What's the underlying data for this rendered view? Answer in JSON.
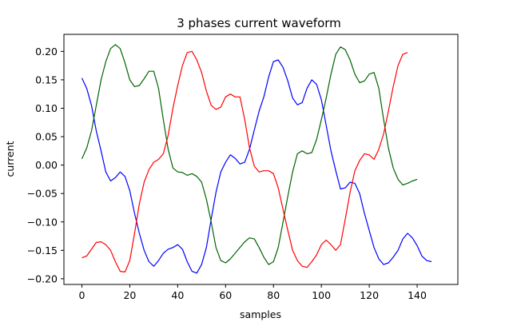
{
  "chart_data": {
    "type": "line",
    "title": "3 phases current waveform",
    "xlabel": "samples",
    "ylabel": "current",
    "xlim": [
      -7.5,
      157
    ],
    "ylim": [
      -0.21,
      0.23
    ],
    "xticks": [
      0,
      20,
      40,
      60,
      80,
      100,
      120,
      140
    ],
    "yticks": [
      -0.2,
      -0.15,
      -0.1,
      -0.05,
      0.0,
      0.05,
      0.1,
      0.15,
      0.2
    ],
    "ytick_labels": [
      "−0.20",
      "−0.15",
      "−0.10",
      "−0.05",
      "0.00",
      "0.05",
      "0.10",
      "0.15",
      "0.20"
    ],
    "legend": "none",
    "grid": false,
    "series": [
      {
        "color": "#0000ff",
        "points": [
          [
            0,
            0.153
          ],
          [
            2,
            0.135
          ],
          [
            4,
            0.105
          ],
          [
            6,
            0.06
          ],
          [
            8,
            0.025
          ],
          [
            10,
            -0.012
          ],
          [
            12,
            -0.028
          ],
          [
            14,
            -0.022
          ],
          [
            16,
            -0.012
          ],
          [
            18,
            -0.02
          ],
          [
            20,
            -0.045
          ],
          [
            22,
            -0.085
          ],
          [
            24,
            -0.12
          ],
          [
            26,
            -0.15
          ],
          [
            28,
            -0.17
          ],
          [
            30,
            -0.178
          ],
          [
            32,
            -0.168
          ],
          [
            34,
            -0.155
          ],
          [
            36,
            -0.148
          ],
          [
            38,
            -0.145
          ],
          [
            40,
            -0.14
          ],
          [
            42,
            -0.148
          ],
          [
            44,
            -0.17
          ],
          [
            46,
            -0.187
          ],
          [
            48,
            -0.19
          ],
          [
            50,
            -0.175
          ],
          [
            52,
            -0.145
          ],
          [
            54,
            -0.095
          ],
          [
            56,
            -0.048
          ],
          [
            58,
            -0.012
          ],
          [
            60,
            0.005
          ],
          [
            62,
            0.018
          ],
          [
            64,
            0.012
          ],
          [
            66,
            0.002
          ],
          [
            68,
            0.005
          ],
          [
            70,
            0.028
          ],
          [
            72,
            0.062
          ],
          [
            74,
            0.095
          ],
          [
            76,
            0.12
          ],
          [
            78,
            0.155
          ],
          [
            80,
            0.182
          ],
          [
            82,
            0.185
          ],
          [
            84,
            0.172
          ],
          [
            86,
            0.148
          ],
          [
            88,
            0.118
          ],
          [
            90,
            0.106
          ],
          [
            92,
            0.11
          ],
          [
            94,
            0.135
          ],
          [
            96,
            0.15
          ],
          [
            98,
            0.142
          ],
          [
            100,
            0.115
          ],
          [
            102,
            0.07
          ],
          [
            104,
            0.025
          ],
          [
            106,
            -0.01
          ],
          [
            108,
            -0.042
          ],
          [
            110,
            -0.04
          ],
          [
            112,
            -0.03
          ],
          [
            114,
            -0.032
          ],
          [
            116,
            -0.05
          ],
          [
            118,
            -0.085
          ],
          [
            120,
            -0.115
          ],
          [
            122,
            -0.145
          ],
          [
            124,
            -0.165
          ],
          [
            126,
            -0.175
          ],
          [
            128,
            -0.172
          ],
          [
            130,
            -0.162
          ],
          [
            132,
            -0.15
          ],
          [
            134,
            -0.13
          ],
          [
            136,
            -0.12
          ],
          [
            138,
            -0.128
          ],
          [
            140,
            -0.142
          ],
          [
            142,
            -0.16
          ],
          [
            144,
            -0.168
          ],
          [
            146,
            -0.17
          ]
        ]
      },
      {
        "color": "#006400",
        "points": [
          [
            0,
            0.011
          ],
          [
            2,
            0.03
          ],
          [
            4,
            0.06
          ],
          [
            6,
            0.105
          ],
          [
            8,
            0.15
          ],
          [
            10,
            0.182
          ],
          [
            12,
            0.205
          ],
          [
            14,
            0.212
          ],
          [
            16,
            0.205
          ],
          [
            18,
            0.18
          ],
          [
            20,
            0.15
          ],
          [
            22,
            0.138
          ],
          [
            24,
            0.14
          ],
          [
            26,
            0.152
          ],
          [
            28,
            0.165
          ],
          [
            30,
            0.165
          ],
          [
            32,
            0.135
          ],
          [
            34,
            0.08
          ],
          [
            36,
            0.028
          ],
          [
            38,
            -0.005
          ],
          [
            40,
            -0.012
          ],
          [
            42,
            -0.013
          ],
          [
            44,
            -0.018
          ],
          [
            46,
            -0.015
          ],
          [
            48,
            -0.02
          ],
          [
            50,
            -0.03
          ],
          [
            52,
            -0.06
          ],
          [
            54,
            -0.1
          ],
          [
            56,
            -0.145
          ],
          [
            58,
            -0.168
          ],
          [
            60,
            -0.172
          ],
          [
            62,
            -0.165
          ],
          [
            64,
            -0.155
          ],
          [
            66,
            -0.145
          ],
          [
            68,
            -0.135
          ],
          [
            70,
            -0.128
          ],
          [
            72,
            -0.13
          ],
          [
            74,
            -0.145
          ],
          [
            76,
            -0.162
          ],
          [
            78,
            -0.175
          ],
          [
            80,
            -0.17
          ],
          [
            82,
            -0.145
          ],
          [
            84,
            -0.1
          ],
          [
            86,
            -0.055
          ],
          [
            88,
            -0.012
          ],
          [
            90,
            0.02
          ],
          [
            92,
            0.025
          ],
          [
            94,
            0.02
          ],
          [
            96,
            0.022
          ],
          [
            98,
            0.045
          ],
          [
            100,
            0.08
          ],
          [
            102,
            0.118
          ],
          [
            104,
            0.16
          ],
          [
            106,
            0.195
          ],
          [
            108,
            0.208
          ],
          [
            110,
            0.203
          ],
          [
            112,
            0.185
          ],
          [
            114,
            0.16
          ],
          [
            116,
            0.145
          ],
          [
            118,
            0.148
          ],
          [
            120,
            0.16
          ],
          [
            122,
            0.163
          ],
          [
            124,
            0.135
          ],
          [
            126,
            0.08
          ],
          [
            128,
            0.03
          ],
          [
            130,
            -0.005
          ],
          [
            132,
            -0.025
          ],
          [
            134,
            -0.035
          ],
          [
            136,
            -0.032
          ],
          [
            138,
            -0.028
          ],
          [
            140,
            -0.025
          ]
        ]
      },
      {
        "color": "#ff0000",
        "points": [
          [
            0,
            -0.163
          ],
          [
            2,
            -0.16
          ],
          [
            4,
            -0.148
          ],
          [
            6,
            -0.136
          ],
          [
            8,
            -0.135
          ],
          [
            10,
            -0.14
          ],
          [
            12,
            -0.15
          ],
          [
            14,
            -0.17
          ],
          [
            16,
            -0.187
          ],
          [
            18,
            -0.188
          ],
          [
            20,
            -0.168
          ],
          [
            22,
            -0.12
          ],
          [
            24,
            -0.068
          ],
          [
            26,
            -0.03
          ],
          [
            28,
            -0.008
          ],
          [
            30,
            0.005
          ],
          [
            32,
            0.01
          ],
          [
            34,
            0.02
          ],
          [
            36,
            0.052
          ],
          [
            38,
            0.1
          ],
          [
            40,
            0.14
          ],
          [
            42,
            0.175
          ],
          [
            44,
            0.198
          ],
          [
            46,
            0.2
          ],
          [
            48,
            0.185
          ],
          [
            50,
            0.163
          ],
          [
            52,
            0.13
          ],
          [
            54,
            0.105
          ],
          [
            56,
            0.098
          ],
          [
            58,
            0.102
          ],
          [
            60,
            0.12
          ],
          [
            62,
            0.125
          ],
          [
            64,
            0.12
          ],
          [
            66,
            0.12
          ],
          [
            68,
            0.08
          ],
          [
            70,
            0.03
          ],
          [
            72,
            -0.002
          ],
          [
            74,
            -0.012
          ],
          [
            76,
            -0.01
          ],
          [
            78,
            -0.01
          ],
          [
            80,
            -0.015
          ],
          [
            82,
            -0.04
          ],
          [
            84,
            -0.078
          ],
          [
            86,
            -0.115
          ],
          [
            88,
            -0.15
          ],
          [
            90,
            -0.168
          ],
          [
            92,
            -0.178
          ],
          [
            94,
            -0.18
          ],
          [
            96,
            -0.17
          ],
          [
            98,
            -0.158
          ],
          [
            100,
            -0.14
          ],
          [
            102,
            -0.132
          ],
          [
            104,
            -0.14
          ],
          [
            106,
            -0.15
          ],
          [
            108,
            -0.14
          ],
          [
            110,
            -0.095
          ],
          [
            112,
            -0.048
          ],
          [
            114,
            -0.01
          ],
          [
            116,
            0.008
          ],
          [
            118,
            0.02
          ],
          [
            120,
            0.018
          ],
          [
            122,
            0.01
          ],
          [
            124,
            0.028
          ],
          [
            126,
            0.055
          ],
          [
            128,
            0.095
          ],
          [
            130,
            0.138
          ],
          [
            132,
            0.175
          ],
          [
            134,
            0.195
          ],
          [
            136,
            0.198
          ]
        ]
      }
    ]
  }
}
